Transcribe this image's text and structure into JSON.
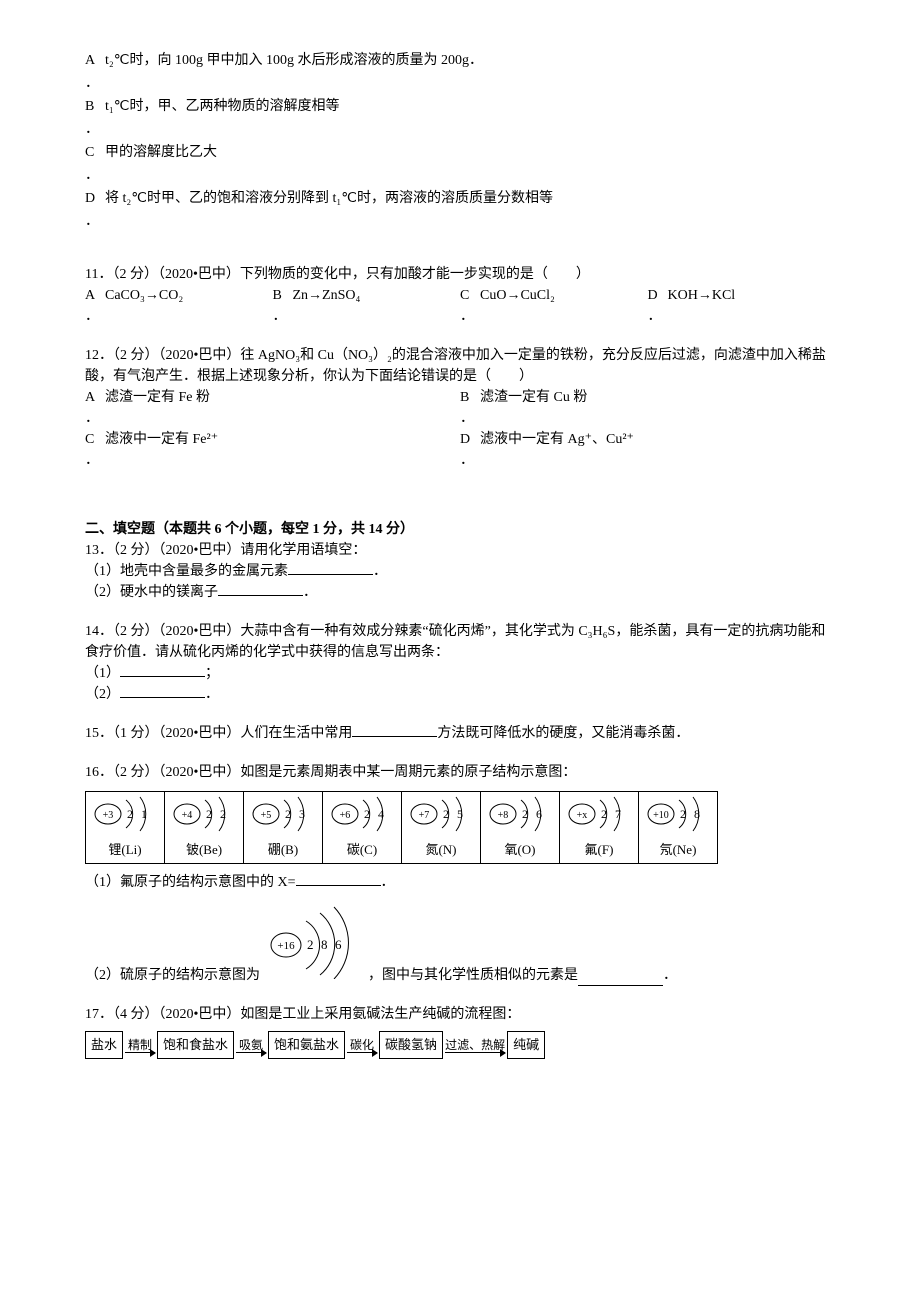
{
  "q10_opts": {
    "A": "t₂℃时，向 100g 甲中加入 100g 水后形成溶液的质量为 200g．",
    "B": "t₁℃时，甲、乙两种物质的溶解度相等",
    "C": "甲的溶解度比乙大",
    "D": "将 t₂℃时甲、乙的饱和溶液分别降到 t₁℃时，两溶液的溶质质量分数相等"
  },
  "q11": {
    "stem": "11．（2 分）（2020•巴中）下列物质的变化中，只有加酸才能一步实现的是（　　）",
    "opts": {
      "A": "CaCO₃→CO₂",
      "B": "Zn→ZnSO₄",
      "C": "CuO→CuCl₂",
      "D": "KOH→KCl"
    }
  },
  "q12": {
    "stem": "12．（2 分）（2020•巴中）往 AgNO₃和 Cu（NO₃）₂的混合溶液中加入一定量的铁粉，充分反应后过滤，向滤渣中加入稀盐酸，有气泡产生．根据上述现象分析，你认为下面结论错误的是（　　）",
    "opts": {
      "A": "滤渣一定有 Fe 粉",
      "B": "滤渣一定有 Cu 粉",
      "C": "滤液中一定有 Fe²⁺",
      "D": "滤液中一定有 Ag⁺、Cu²⁺"
    }
  },
  "section2_title": "二、填空题（本题共 6 个小题，每空 1 分，共 14 分）",
  "q13": {
    "stem": "13．（2 分）（2020•巴中）请用化学用语填空：",
    "p1": "（1）地壳中含量最多的金属元素",
    "p2": "（2）硬水中的镁离子",
    "end": "．"
  },
  "q14": {
    "stem": "14．（2 分）（2020•巴中）大蒜中含有一种有效成分辣素“硫化丙烯”，其化学式为 C₃H₆S，能杀菌，具有一定的抗病功能和食疗价值．请从硫化丙烯的化学式中获得的信息写出两条：",
    "p1": "（1）",
    "p2": "（2）",
    "end1": "；",
    "end2": "．"
  },
  "q15": {
    "stem_a": "15．（1 分）（2020•巴中）人们在生活中常用",
    "stem_b": "方法既可降低水的硬度，又能消毒杀菌．"
  },
  "q16": {
    "stem": "16．（2 分）（2020•巴中）如图是元素周期表中某一周期元素的原子结构示意图：",
    "elements": [
      {
        "z": "+3",
        "shells": "2 1",
        "name": "锂(Li)"
      },
      {
        "z": "+4",
        "shells": "2 2",
        "name": "铍(Be)"
      },
      {
        "z": "+5",
        "shells": "2 3",
        "name": "硼(B)"
      },
      {
        "z": "+6",
        "shells": "2 4",
        "name": "碳(C)"
      },
      {
        "z": "+7",
        "shells": "2 5",
        "name": "氮(N)"
      },
      {
        "z": "+8",
        "shells": "2 6",
        "name": "氧(O)"
      },
      {
        "z": "+x",
        "shells": "2 7",
        "name": "氟(F)"
      },
      {
        "z": "+10",
        "shells": "2 8",
        "name": "氖(Ne)"
      }
    ],
    "p1_a": "（1）氟原子的结构示意图中的 X=",
    "p1_end": "．",
    "p2_a": "（2）硫原子的结构示意图为",
    "p2_b": "，图中与其化学性质相似的元素是",
    "p2_end": "．",
    "sulfur": {
      "z": "+16",
      "shells": "2 8 6"
    }
  },
  "q17": {
    "stem": "17．（4 分）（2020•巴中）如图是工业上采用氨碱法生产纯碱的流程图：",
    "flow": {
      "boxes": [
        "盐水",
        "饱和食盐水",
        "饱和氨盐水",
        "碳酸氢钠",
        "纯碱"
      ],
      "arrows": [
        "精制",
        "吸氨",
        "碳化",
        "过滤、热解"
      ]
    }
  },
  "dot": "．",
  "colors": {
    "text": "#000000",
    "bg": "#ffffff",
    "border": "#000000"
  }
}
